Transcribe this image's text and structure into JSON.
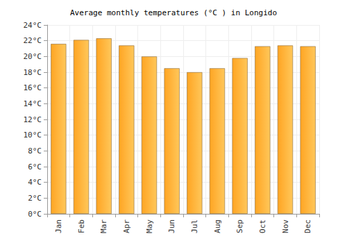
{
  "chart_data": {
    "type": "bar",
    "title": "Average monthly temperatures (°C ) in Longido",
    "categories": [
      "Jan",
      "Feb",
      "Mar",
      "Apr",
      "May",
      "Jun",
      "Jul",
      "Aug",
      "Sep",
      "Oct",
      "Nov",
      "Dec"
    ],
    "values": [
      21.6,
      22.1,
      22.3,
      21.4,
      20.0,
      18.5,
      18.0,
      18.5,
      19.8,
      21.3,
      21.4,
      21.3
    ],
    "color": "#ffa523",
    "ylim": [
      0,
      24
    ],
    "yticks": [
      {
        "value": 0,
        "label": "0°C"
      },
      {
        "value": 2,
        "label": "2°C"
      },
      {
        "value": 4,
        "label": "4°C"
      },
      {
        "value": 6,
        "label": "6°C"
      },
      {
        "value": 8,
        "label": "8°C"
      },
      {
        "value": 10,
        "label": "10°C"
      },
      {
        "value": 12,
        "label": "12°C"
      },
      {
        "value": 14,
        "label": "14°C"
      },
      {
        "value": 16,
        "label": "16°C"
      },
      {
        "value": 18,
        "label": "18°C"
      },
      {
        "value": 20,
        "label": "20°C"
      },
      {
        "value": 22,
        "label": "22°C"
      },
      {
        "value": 24,
        "label": "24°C"
      }
    ],
    "grid": true
  }
}
